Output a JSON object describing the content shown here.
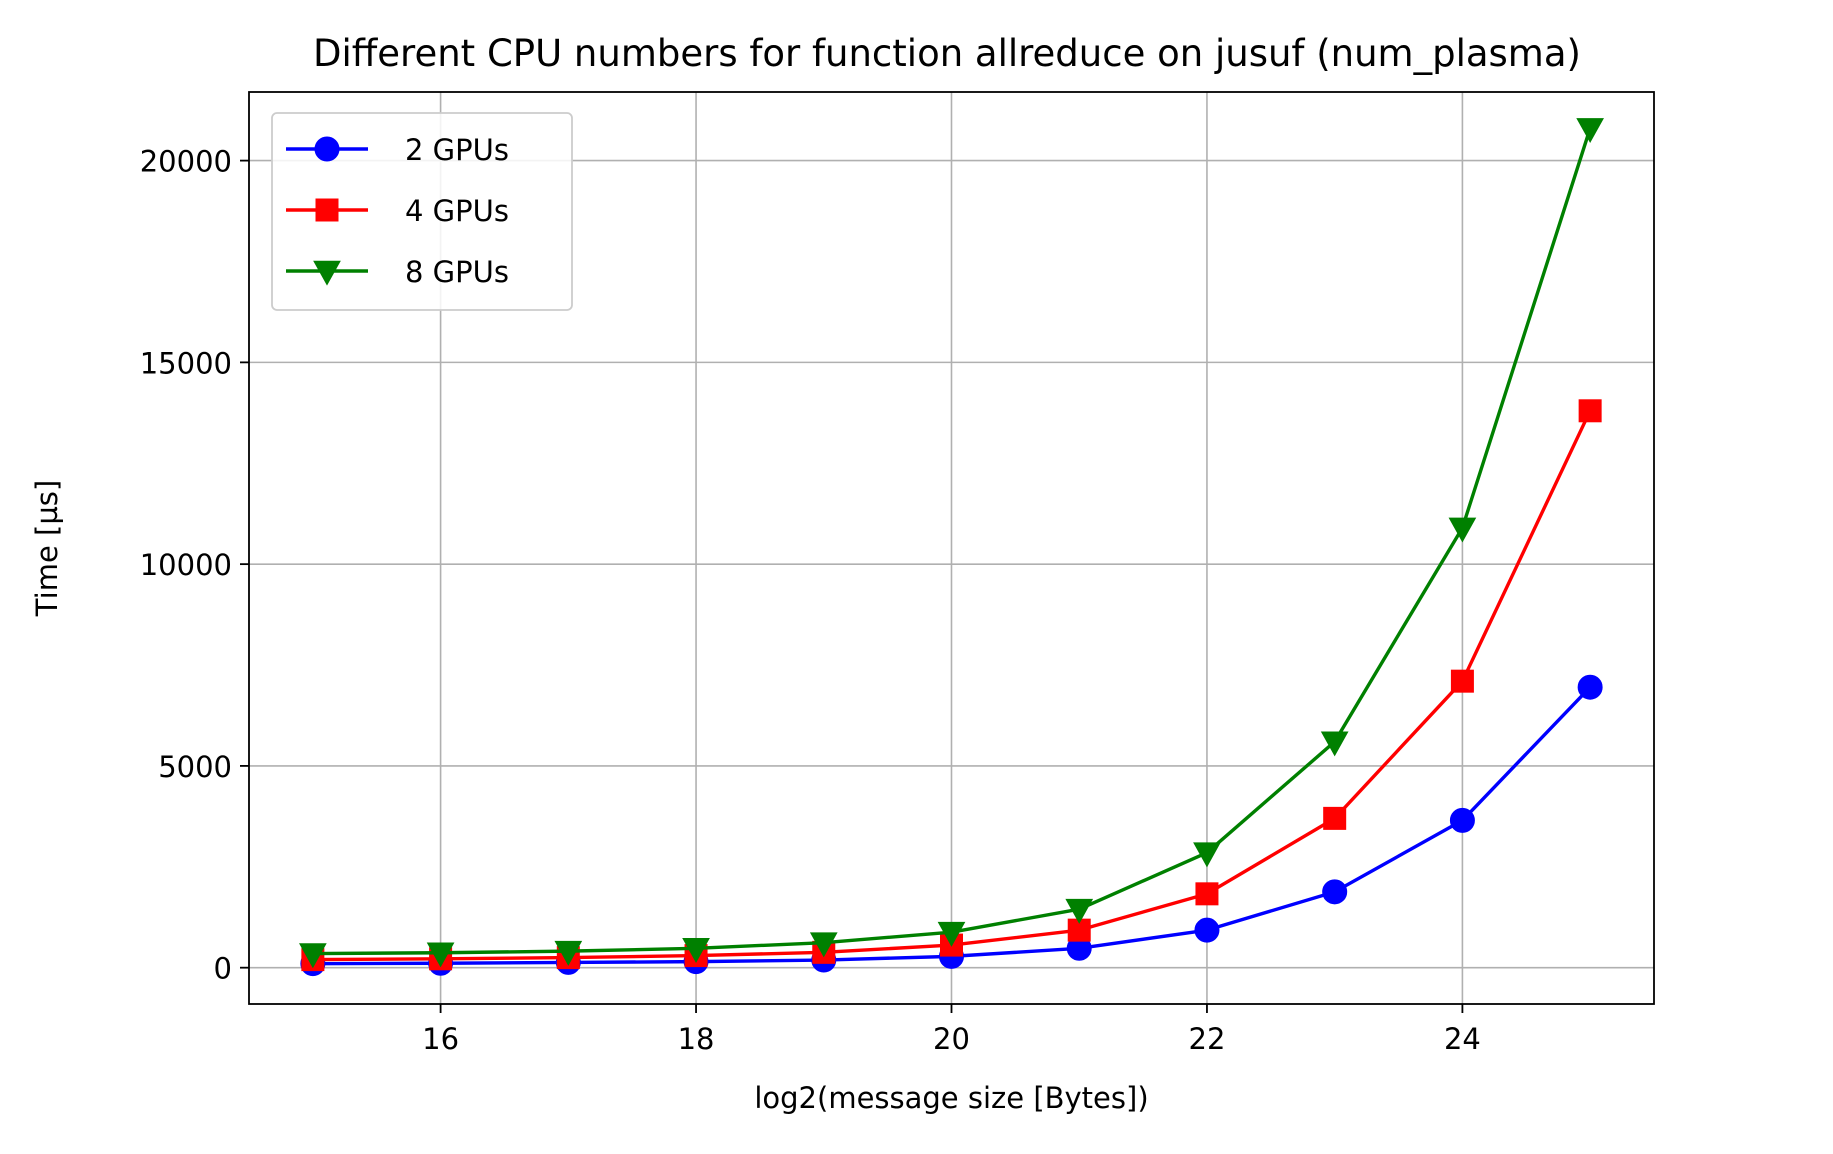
{
  "chart_data": {
    "type": "line",
    "title": "Different CPU numbers for function allreduce on jusuf (num_plasma)",
    "xlabel": "log2(message size [Bytes])",
    "ylabel": "Time [µs]",
    "xlim": [
      14.5,
      25.5
    ],
    "ylim": [
      -900,
      21700
    ],
    "xticks": [
      16,
      18,
      20,
      22,
      24
    ],
    "yticks": [
      0,
      5000,
      10000,
      15000,
      20000
    ],
    "grid": true,
    "legend_position": "top-left",
    "x": [
      15,
      16,
      17,
      18,
      19,
      20,
      21,
      22,
      23,
      24,
      25
    ],
    "series": [
      {
        "name": "2 GPUs",
        "color": "#0000ff",
        "marker": "circle",
        "values": [
          100,
          110,
          130,
          150,
          190,
          280,
          480,
          930,
          1880,
          3650,
          6950
        ]
      },
      {
        "name": "4 GPUs",
        "color": "#ff0000",
        "marker": "square",
        "values": [
          200,
          220,
          250,
          300,
          380,
          560,
          930,
          1830,
          3700,
          7100,
          13800
        ]
      },
      {
        "name": "8 GPUs",
        "color": "#008000",
        "marker": "triangle-down",
        "values": [
          350,
          370,
          410,
          480,
          620,
          880,
          1450,
          2850,
          5600,
          10900,
          20800
        ]
      }
    ]
  }
}
